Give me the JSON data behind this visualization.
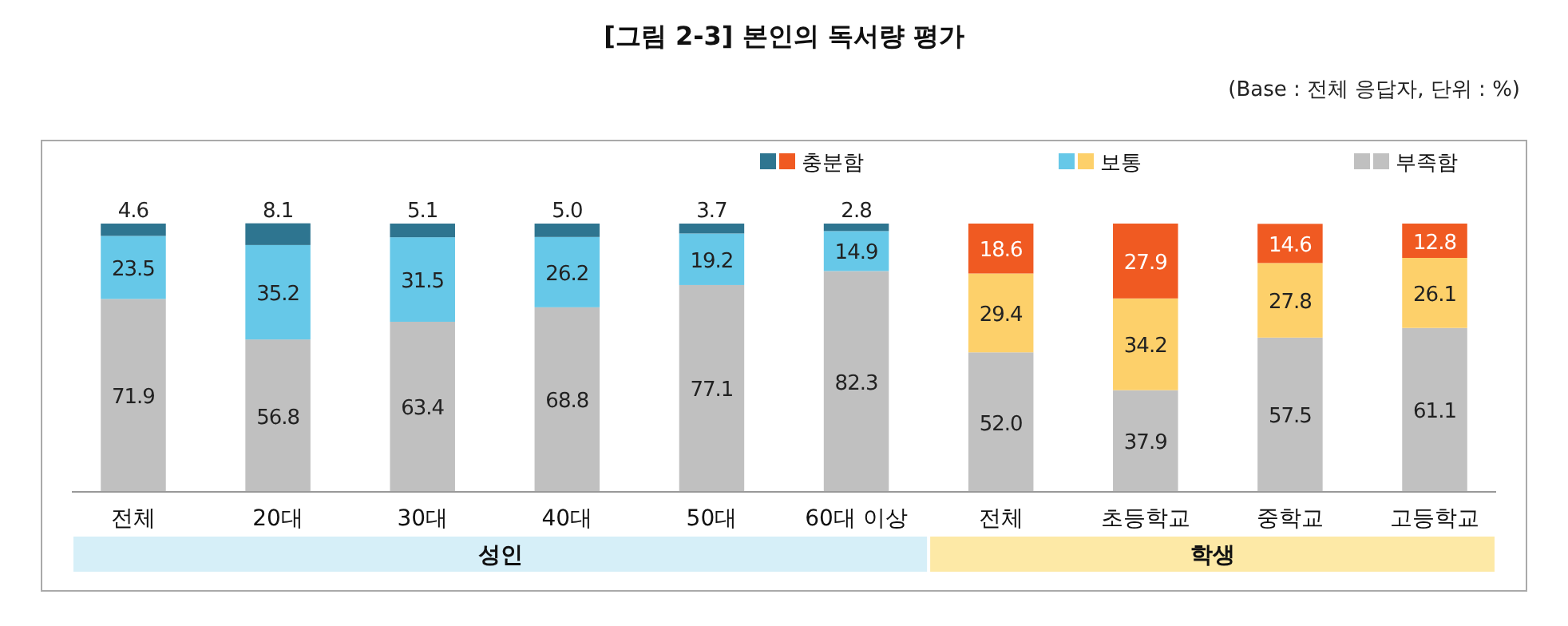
{
  "chart_data": {
    "type": "bar",
    "title": "[그림 2-3] 본인의 독서량 평가",
    "subtitle": "(Base : 전체 응답자, 단위 : %)",
    "categories": [
      "전체",
      "20대",
      "30대",
      "40대",
      "50대",
      "60대 이상",
      "전체",
      "초등학교",
      "중학교",
      "고등학교"
    ],
    "stacked": true,
    "legend": "top",
    "tick_labels": "x",
    "ylim": [
      0,
      100
    ],
    "series": [
      {
        "name": "부족함",
        "colors": [
          "#c0c0c0",
          "#c0c0c0",
          "#c0c0c0",
          "#c0c0c0",
          "#c0c0c0",
          "#c0c0c0",
          "#c1c1c1",
          "#c1c1c1",
          "#c1c1c1",
          "#c1c1c1"
        ],
        "values": [
          71.9,
          56.8,
          63.4,
          68.8,
          77.1,
          82.3,
          52.0,
          37.9,
          57.5,
          61.1
        ],
        "value_labels": [
          "71.9",
          "56.8",
          "63.4",
          "68.8",
          "77.1",
          "82.3",
          "52.0",
          "37.9",
          "57.5",
          "61.1"
        ]
      },
      {
        "name": "보통",
        "colors": [
          "#66c8e8",
          "#66c8e8",
          "#66c8e8",
          "#66c8e8",
          "#66c8e8",
          "#66c8e8",
          "#fdd06a",
          "#fdd06a",
          "#fdd06a",
          "#fdd06a"
        ],
        "values": [
          23.5,
          35.2,
          31.5,
          26.2,
          19.2,
          14.9,
          29.4,
          34.2,
          27.8,
          26.1
        ],
        "value_labels": [
          "23.5",
          "35.2",
          "31.5",
          "26.2",
          "19.2",
          "14.9",
          "29.4",
          "34.2",
          "27.8",
          "26.1"
        ]
      },
      {
        "name": "충분함",
        "colors": [
          "#2e7590",
          "#2e7590",
          "#2e7590",
          "#2e7590",
          "#2e7590",
          "#2e7590",
          "#f05a22",
          "#f05a22",
          "#f05a22",
          "#f05a22"
        ],
        "values": [
          4.6,
          8.1,
          5.1,
          5.0,
          3.7,
          2.8,
          18.6,
          27.9,
          14.6,
          12.8
        ],
        "value_labels": [
          "4.6",
          "8.1",
          "5.1",
          "5.0",
          "3.7",
          "2.8",
          "18.6",
          "27.9",
          "14.6",
          "12.8"
        ]
      }
    ],
    "annotations": [
      "성인",
      "학생"
    ]
  }
}
